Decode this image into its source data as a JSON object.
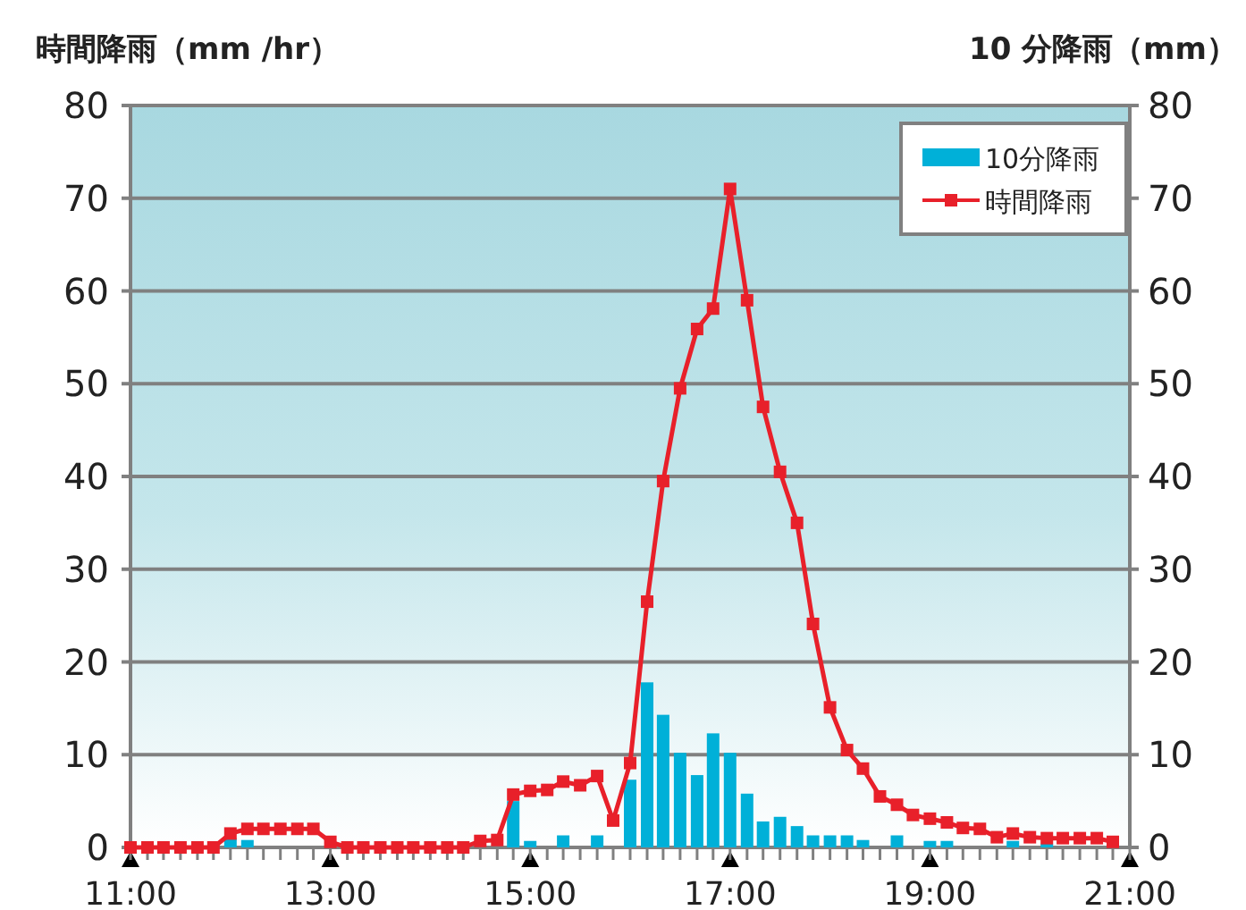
{
  "chart_data": {
    "type": "line",
    "ylabel": "時間降雨（mm /hr）",
    "y2label": "10 分降雨（mm）",
    "xlim": [
      11,
      21
    ],
    "xticks": [
      {
        "value": 11,
        "label": "11:00"
      },
      {
        "value": 11.17,
        "label": null
      },
      {
        "value": 11.33,
        "label": null
      },
      {
        "value": 11.5,
        "label": null
      },
      {
        "value": 11.67,
        "label": null
      },
      {
        "value": 11.83,
        "label": null
      },
      {
        "value": 12,
        "label": null
      },
      {
        "value": 12.17,
        "label": null
      },
      {
        "value": 12.33,
        "label": null
      },
      {
        "value": 12.5,
        "label": null
      },
      {
        "value": 12.67,
        "label": null
      },
      {
        "value": 12.83,
        "label": null
      },
      {
        "value": 13,
        "label": "13:00"
      },
      {
        "value": 13.17,
        "label": null
      },
      {
        "value": 13.33,
        "label": null
      },
      {
        "value": 13.5,
        "label": null
      },
      {
        "value": 13.67,
        "label": null
      },
      {
        "value": 13.83,
        "label": null
      },
      {
        "value": 14,
        "label": null
      },
      {
        "value": 14.17,
        "label": null
      },
      {
        "value": 14.33,
        "label": null
      },
      {
        "value": 14.5,
        "label": null
      },
      {
        "value": 14.67,
        "label": null
      },
      {
        "value": 14.83,
        "label": null
      },
      {
        "value": 15,
        "label": "15:00"
      },
      {
        "value": 15.17,
        "label": null
      },
      {
        "value": 15.33,
        "label": null
      },
      {
        "value": 15.5,
        "label": null
      },
      {
        "value": 15.67,
        "label": null
      },
      {
        "value": 15.83,
        "label": null
      },
      {
        "value": 16,
        "label": null
      },
      {
        "value": 16.17,
        "label": null
      },
      {
        "value": 16.33,
        "label": null
      },
      {
        "value": 16.5,
        "label": null
      },
      {
        "value": 16.67,
        "label": null
      },
      {
        "value": 16.83,
        "label": null
      },
      {
        "value": 17,
        "label": "17:00"
      },
      {
        "value": 17.17,
        "label": null
      },
      {
        "value": 17.33,
        "label": null
      },
      {
        "value": 17.5,
        "label": null
      },
      {
        "value": 17.67,
        "label": null
      },
      {
        "value": 17.83,
        "label": null
      },
      {
        "value": 18,
        "label": null
      },
      {
        "value": 18.17,
        "label": null
      },
      {
        "value": 18.33,
        "label": null
      },
      {
        "value": 18.5,
        "label": null
      },
      {
        "value": 18.67,
        "label": null
      },
      {
        "value": 18.83,
        "label": null
      },
      {
        "value": 19,
        "label": "19:00"
      },
      {
        "value": 19.17,
        "label": null
      },
      {
        "value": 19.33,
        "label": null
      },
      {
        "value": 19.5,
        "label": null
      },
      {
        "value": 19.67,
        "label": null
      },
      {
        "value": 19.83,
        "label": null
      },
      {
        "value": 20,
        "label": null
      },
      {
        "value": 20.17,
        "label": null
      },
      {
        "value": 20.33,
        "label": null
      },
      {
        "value": 20.5,
        "label": null
      },
      {
        "value": 20.67,
        "label": null
      },
      {
        "value": 20.83,
        "label": null
      },
      {
        "value": 21,
        "label": "21:00"
      }
    ],
    "ylim": [
      0,
      80
    ],
    "yticks": [
      0,
      10,
      20,
      30,
      40,
      50,
      60,
      70,
      80
    ],
    "y2lim": [
      0,
      80
    ],
    "y2ticks": [
      0,
      10,
      20,
      30,
      40,
      50,
      60,
      70,
      80
    ],
    "grid": "y",
    "legend": "top right",
    "marker": "square",
    "line_style": "solid",
    "series": [
      {
        "name": "10分降雨",
        "type": "bar",
        "color": "#00b0d8",
        "x": [
          12,
          12.17,
          14.83,
          15,
          15.33,
          15.67,
          16,
          16.17,
          16.33,
          16.5,
          16.67,
          16.83,
          17,
          17.17,
          17.33,
          17.5,
          17.67,
          17.83,
          18,
          18.17,
          18.33,
          18.67,
          19,
          19.17,
          19.83,
          20.17
        ],
        "values": [
          1.0,
          0.8,
          5.0,
          0.7,
          1.3,
          1.3,
          7.3,
          17.8,
          14.3,
          10.2,
          7.8,
          12.3,
          10.2,
          5.8,
          2.8,
          3.3,
          2.3,
          1.3,
          1.3,
          1.3,
          0.8,
          1.3,
          0.7,
          0.7,
          0.7,
          0.4
        ]
      },
      {
        "name": "時間降雨",
        "color": "#e8202a",
        "x": [
          11,
          11.17,
          11.33,
          11.5,
          11.67,
          11.83,
          12,
          12.17,
          12.33,
          12.5,
          12.67,
          12.83,
          13,
          13.17,
          13.33,
          13.5,
          13.67,
          13.83,
          14,
          14.17,
          14.33,
          14.5,
          14.67,
          14.83,
          15,
          15.17,
          15.33,
          15.5,
          15.67,
          15.83,
          16,
          16.17,
          16.33,
          16.5,
          16.67,
          16.83,
          17,
          17.17,
          17.33,
          17.5,
          17.67,
          17.83,
          18,
          18.17,
          18.33,
          18.5,
          18.67,
          18.83,
          19,
          19.17,
          19.33,
          19.5,
          19.67,
          19.83,
          20,
          20.17,
          20.33,
          20.5,
          20.67,
          20.83
        ],
        "values": [
          0,
          0,
          0,
          0,
          0,
          0,
          1.5,
          2,
          2,
          2,
          2,
          2,
          0.6,
          0,
          0,
          0,
          0,
          0,
          0,
          0,
          0,
          0.7,
          0.8,
          5.7,
          6.1,
          6.2,
          7.1,
          6.7,
          7.7,
          2.9,
          9.1,
          26.5,
          39.5,
          49.5,
          55.9,
          58.1,
          71,
          59,
          47.5,
          40.5,
          35,
          24.1,
          15.1,
          10.5,
          8.5,
          5.5,
          4.6,
          3.5,
          3.1,
          2.7,
          2.1,
          2.0,
          1.1,
          1.5,
          1.1,
          1.0,
          1.0,
          1.0,
          1.0,
          0.6
        ]
      }
    ]
  }
}
